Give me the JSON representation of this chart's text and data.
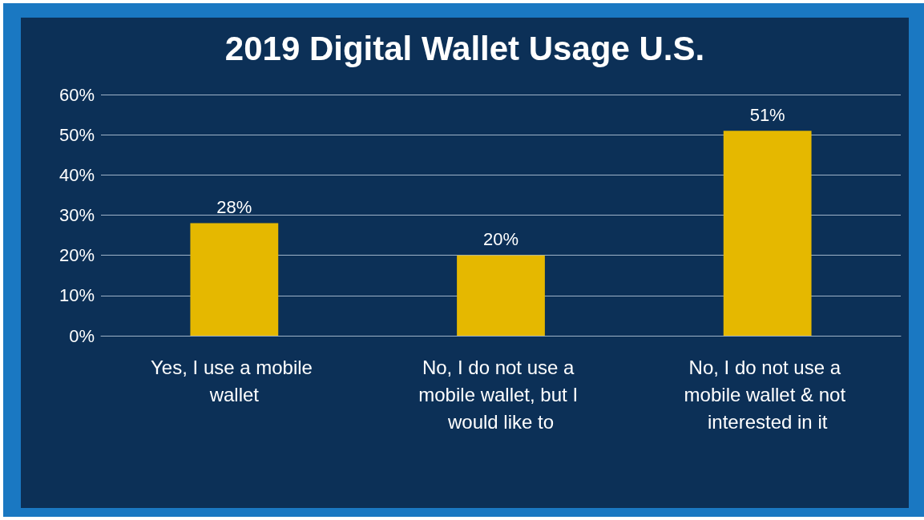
{
  "chart_data": {
    "type": "bar",
    "title": "2019 Digital Wallet Usage U.S.",
    "categories": [
      "Yes, I use a mobile wallet",
      "No, I do not use a mobile wallet, but I would like to",
      "No, I do not use a mobile wallet & not interested in it"
    ],
    "values": [
      28,
      20,
      51
    ],
    "color": "#e5b800",
    "ylim": [
      0,
      60
    ],
    "yticks": [
      {
        "value": 0,
        "label": "0%"
      },
      {
        "value": 10,
        "label": "10%"
      },
      {
        "value": 20,
        "label": "20%"
      },
      {
        "value": 30,
        "label": "30%"
      },
      {
        "value": 40,
        "label": "40%"
      },
      {
        "value": 50,
        "label": "50%"
      },
      {
        "value": 60,
        "label": "60%"
      }
    ],
    "value_labels": [
      "28%",
      "20%",
      "51%"
    ],
    "grid": "y"
  }
}
